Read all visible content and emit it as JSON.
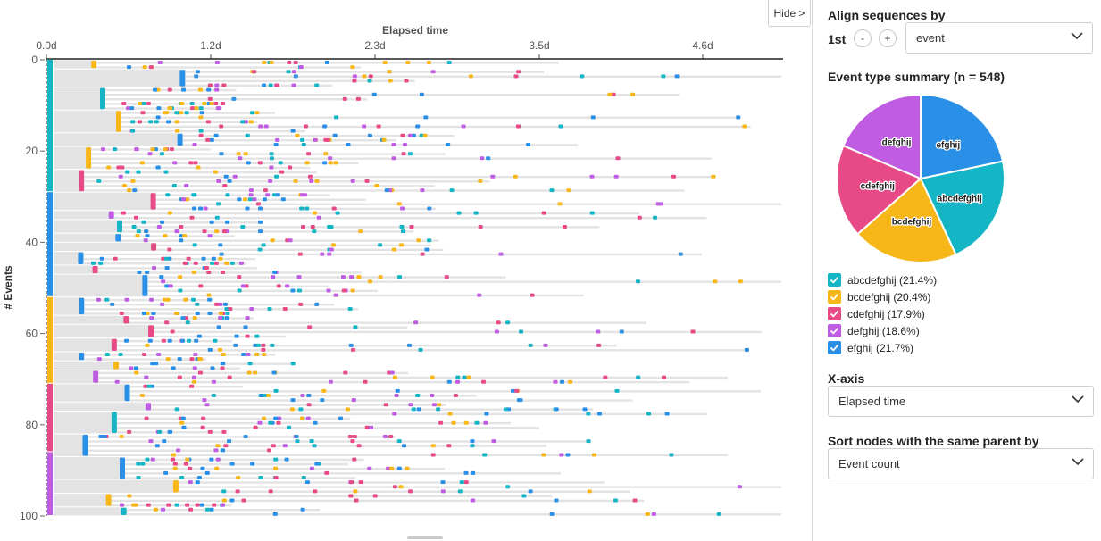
{
  "colors": {
    "abcdefghij": "#14b5c4",
    "bcdefghij": "#f8b719",
    "cdefghij": "#e84a87",
    "defghij": "#c05ce2",
    "efghij": "#2a8fe6",
    "bar_bg": "#e3e3e3",
    "axis": "#222222"
  },
  "chart_data": {
    "type": "timeline",
    "title": "Elapsed time",
    "x_ticks": [
      "0.0d",
      "1.2d",
      "2.3d",
      "3.5d",
      "4.6d"
    ],
    "y_ticks": [
      "0",
      "20",
      "40",
      "60",
      "80",
      "100"
    ],
    "y_label": "# Events",
    "pie": {
      "title": "Event type summary (n = 548)",
      "slices": [
        {
          "name": "abcdefghij",
          "value": 21.4
        },
        {
          "name": "bcdefghij",
          "value": 20.4
        },
        {
          "name": "cdefghij",
          "value": 17.9
        },
        {
          "name": "defghij",
          "value": 18.6
        },
        {
          "name": "efghij",
          "value": 21.7
        }
      ]
    }
  },
  "chart_panel": {
    "hide_label": "Hide >"
  },
  "side_panel": {
    "align_title": "Align sequences by",
    "nth_label": "1st",
    "minus_label": "-",
    "plus_label": "+",
    "align_select_value": "event",
    "legend": [
      {
        "label": "abcdefghij (21.4%)",
        "key": "abcdefghij",
        "checked": true
      },
      {
        "label": "bcdefghij (20.4%)",
        "key": "bcdefghij",
        "checked": true
      },
      {
        "label": "cdefghij (17.9%)",
        "key": "cdefghij",
        "checked": true
      },
      {
        "label": "defghij (18.6%)",
        "key": "defghij",
        "checked": true
      },
      {
        "label": "efghij (21.7%)",
        "key": "efghij",
        "checked": true
      }
    ],
    "xaxis_title": "X-axis",
    "xaxis_value": "Elapsed time",
    "sort_title": "Sort nodes with the same parent by",
    "sort_value": "Event count"
  }
}
